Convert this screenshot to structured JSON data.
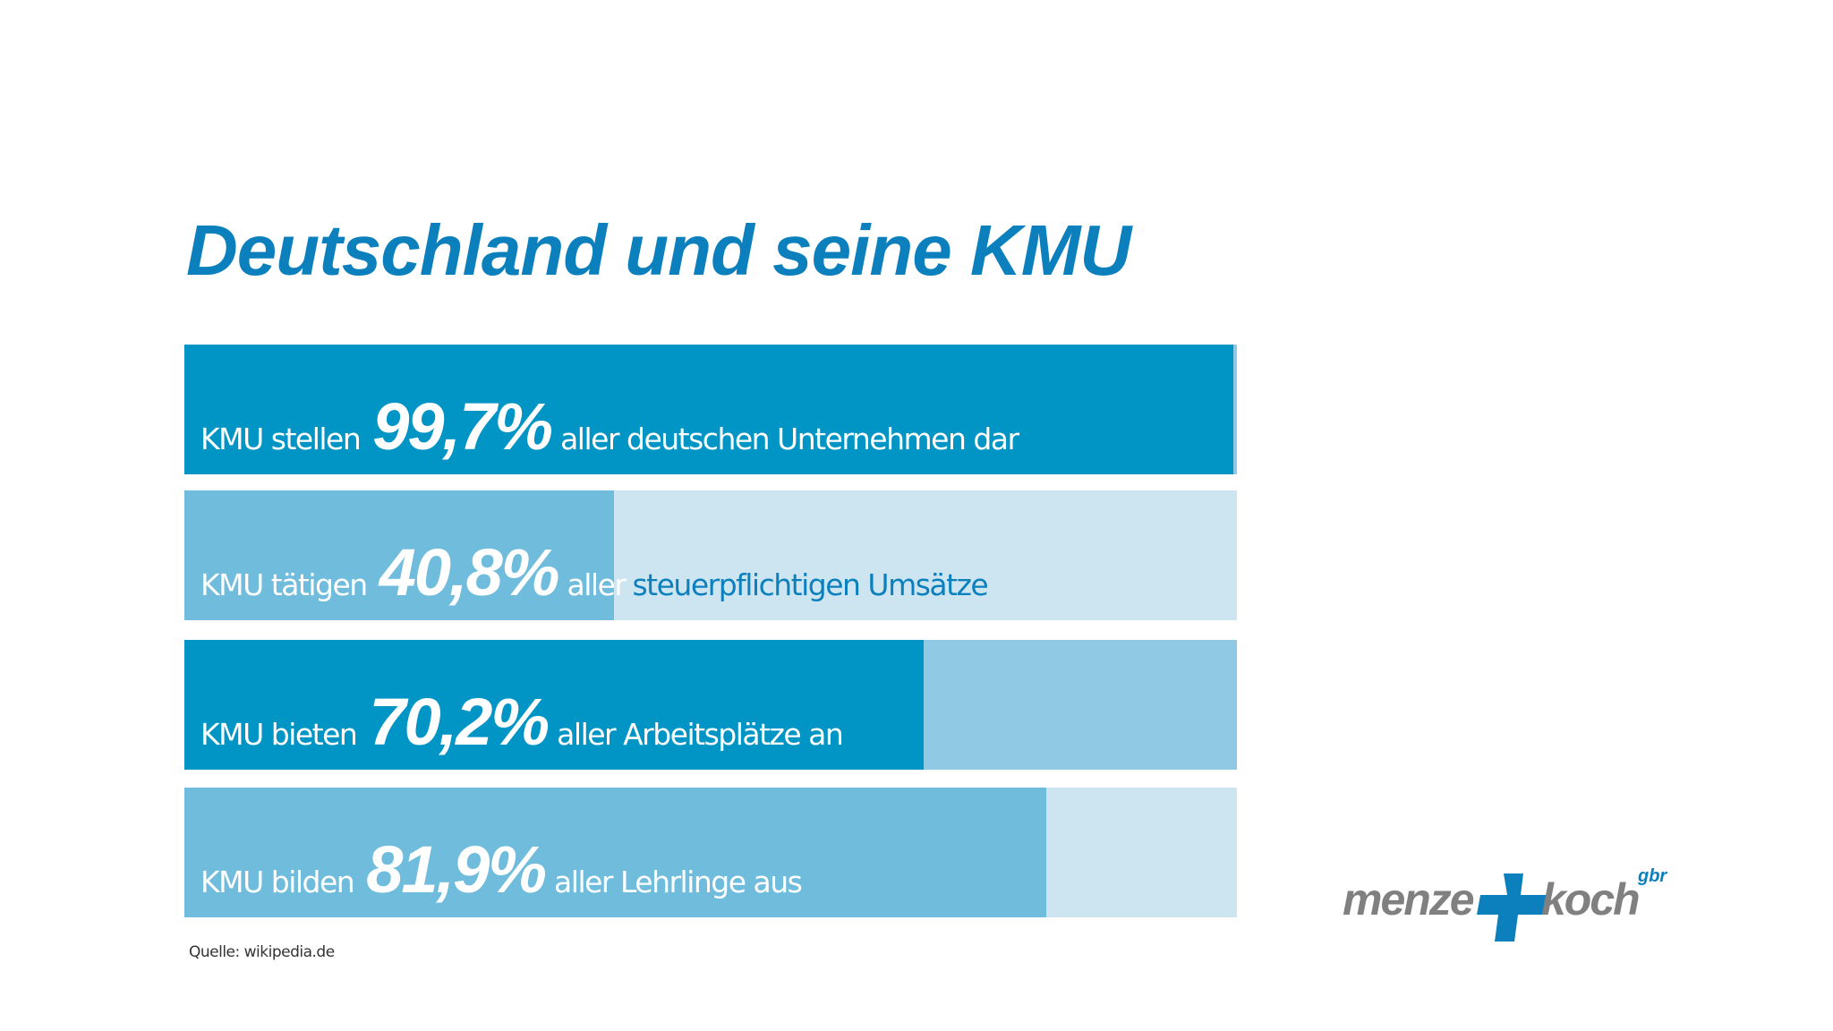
{
  "chart_data": {
    "type": "bar",
    "title": "Deutschland und seine KMU",
    "orientation": "horizontal",
    "xlim": [
      0,
      100
    ],
    "unit": "%",
    "rows": [
      {
        "prefix": "KMU stellen",
        "value_label": "99,7%",
        "suffix": "aller deutschen Unternehmen dar",
        "suffix_highlight": "",
        "value": 99.7,
        "fill_color": "#0095c5",
        "track_color": "#90c9e3"
      },
      {
        "prefix": "KMU tätigen",
        "value_label": "40,8%",
        "suffix": "aller",
        "suffix_highlight": "steuerpflichtigen Umsätze",
        "value": 40.8,
        "fill_color": "#6fbcdc",
        "track_color": "#cde5f1"
      },
      {
        "prefix": "KMU bieten",
        "value_label": "70,2%",
        "suffix": "aller Arbeitsplätze an",
        "suffix_highlight": "",
        "value": 70.2,
        "fill_color": "#0095c5",
        "track_color": "#90c9e3"
      },
      {
        "prefix": "KMU bilden",
        "value_label": "81,9%",
        "suffix": "aller Lehrlinge aus",
        "suffix_highlight": "",
        "value": 81.9,
        "fill_color": "#6fbcdc",
        "track_color": "#cde5f1"
      }
    ]
  },
  "source": "Quelle: wikipedia.de",
  "logo": {
    "left": "menze",
    "right": "koch",
    "sup": "gbr",
    "text_color": "#808080",
    "accent_color": "#0b80bd"
  }
}
